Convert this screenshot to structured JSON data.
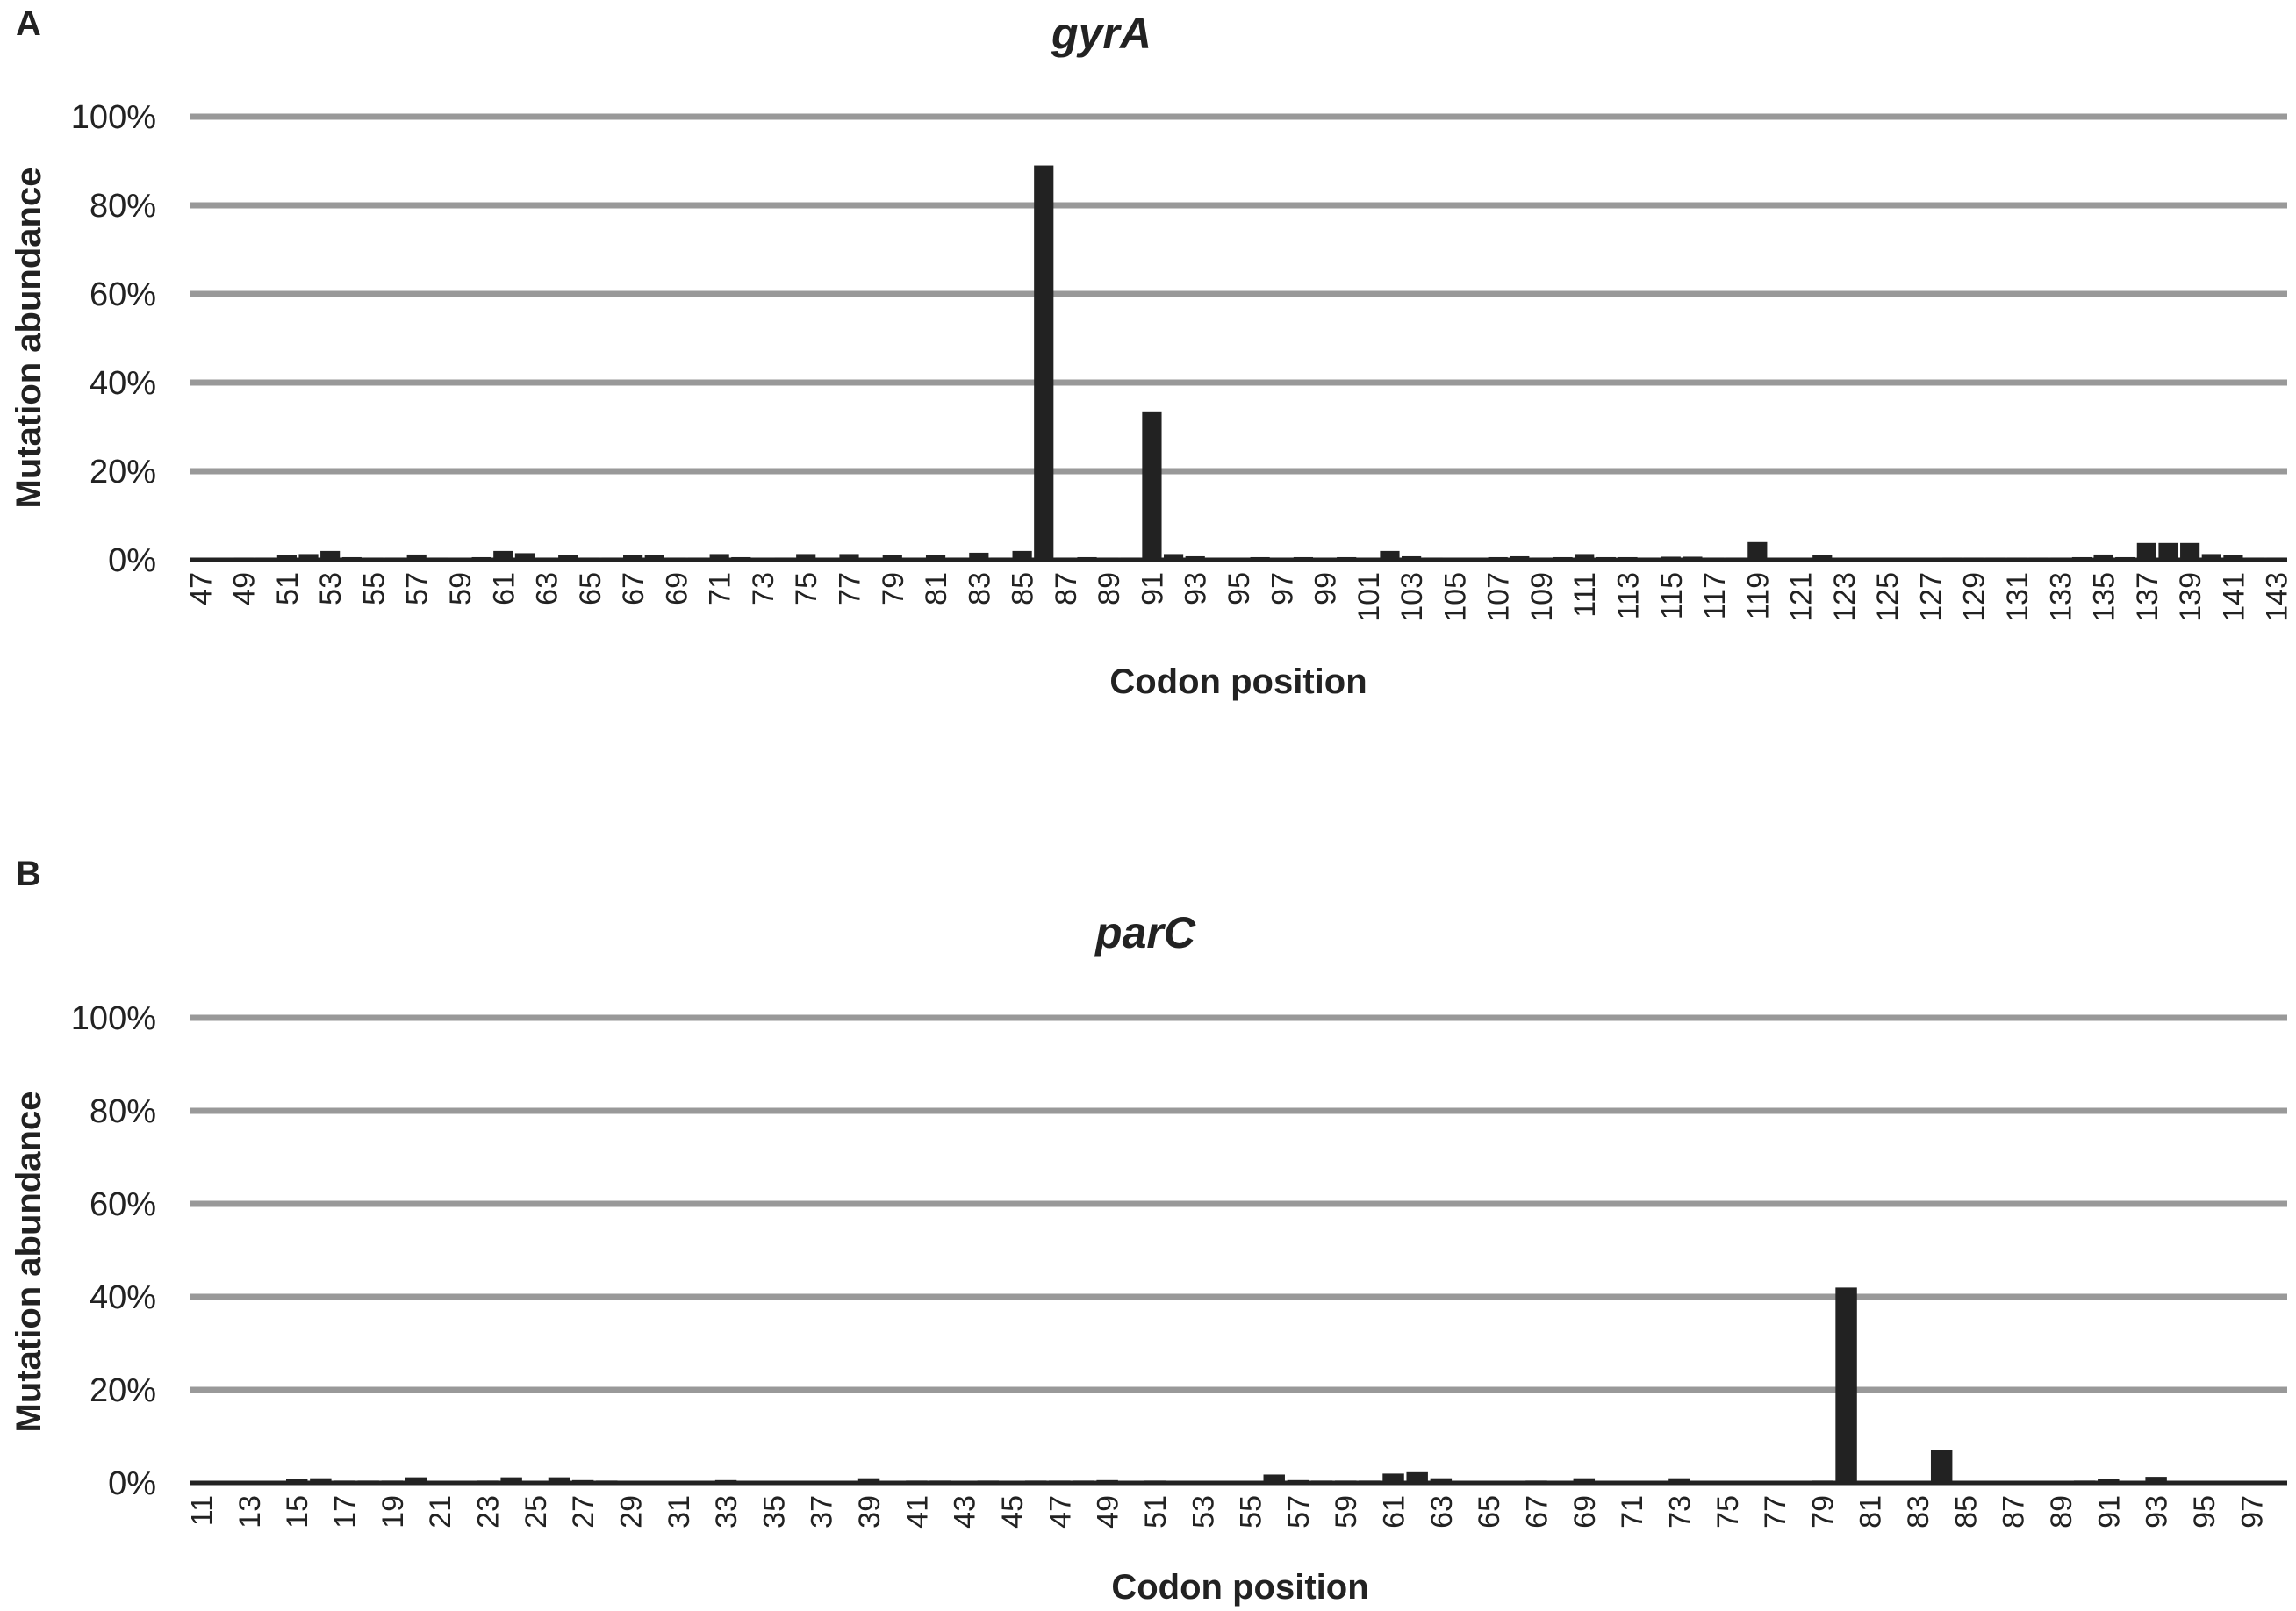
{
  "figure": {
    "colors": {
      "bar": "#222222",
      "grid": "#999999",
      "axis": "#222222",
      "text": "#222222"
    }
  },
  "chart_data": [
    {
      "panel": "A",
      "type": "bar",
      "title": "gyrA",
      "xlabel": "Codon position",
      "ylabel": "Mutation abundance",
      "ylim": [
        0,
        100
      ],
      "y_ticks": [
        "0%",
        "20%",
        "40%",
        "60%",
        "80%",
        "100%"
      ],
      "grid": true,
      "legend": "none",
      "x_start": 47,
      "x_end": 143,
      "tick_labels": [
        "47",
        "49",
        "51",
        "53",
        "55",
        "57",
        "59",
        "61",
        "63",
        "65",
        "67",
        "69",
        "71",
        "73",
        "75",
        "77",
        "79",
        "81",
        "83",
        "85",
        "87",
        "89",
        "91",
        "93",
        "95",
        "97",
        "99",
        "101",
        "103",
        "105",
        "107",
        "109",
        "111",
        "113",
        "115",
        "117",
        "119",
        "121",
        "123",
        "125",
        "127",
        "129",
        "131",
        "133",
        "135",
        "137",
        "139",
        "141",
        "143"
      ],
      "values": [
        0.3,
        0.3,
        0.5,
        0.5,
        1.0,
        1.3,
        2.0,
        0.6,
        0.5,
        0.5,
        1.2,
        0.5,
        0.4,
        0.6,
        2.0,
        1.5,
        0.5,
        1.0,
        0.5,
        0.5,
        1.0,
        1.0,
        0.5,
        0.5,
        1.3,
        0.6,
        0.4,
        0.5,
        1.3,
        0.4,
        1.3,
        0.4,
        1.0,
        0.4,
        1.0,
        0.5,
        1.6,
        0.5,
        2.0,
        89.0,
        0.5,
        0.6,
        0.5,
        0.5,
        33.5,
        1.3,
        0.8,
        0.4,
        0.4,
        0.6,
        0.4,
        0.6,
        0.4,
        0.6,
        0.4,
        2.0,
        0.8,
        0.5,
        0.4,
        0.4,
        0.6,
        0.8,
        0.5,
        0.6,
        1.3,
        0.6,
        0.6,
        0.5,
        0.7,
        0.7,
        0.5,
        0.5,
        4.0,
        0.4,
        0.4,
        1.0,
        0.4,
        0.4,
        0.4,
        0.4,
        0.4,
        0.5,
        0.5,
        0.5,
        0.5,
        0.5,
        0.5,
        0.6,
        1.2,
        0.6,
        3.8,
        3.8,
        3.8,
        1.3,
        1.0,
        0.5,
        0.5
      ]
    },
    {
      "panel": "B",
      "type": "bar",
      "title": "parC",
      "xlabel": "Codon position",
      "ylabel": "Mutation abundance",
      "ylim": [
        0,
        100
      ],
      "y_ticks": [
        "0%",
        "20%",
        "40%",
        "60%",
        "80%",
        "100%"
      ],
      "grid": true,
      "legend": "none",
      "x_start": 11,
      "x_end": 98,
      "tick_labels": [
        "11",
        "13",
        "15",
        "17",
        "19",
        "21",
        "23",
        "25",
        "27",
        "29",
        "31",
        "33",
        "35",
        "37",
        "39",
        "41",
        "43",
        "45",
        "47",
        "49",
        "51",
        "53",
        "55",
        "57",
        "59",
        "61",
        "63",
        "65",
        "67",
        "69",
        "71",
        "73",
        "75",
        "77",
        "79",
        "81",
        "83",
        "85",
        "87",
        "89",
        "91",
        "93",
        "95",
        "97"
      ],
      "values": [
        0.3,
        0.3,
        0.3,
        0.3,
        0.8,
        1.0,
        0.5,
        0.5,
        0.5,
        1.2,
        0.3,
        0.3,
        0.5,
        1.2,
        0.3,
        1.2,
        0.6,
        0.5,
        0.3,
        0.3,
        0.3,
        0.3,
        0.6,
        0.3,
        0.3,
        0.3,
        0.3,
        0.3,
        1.0,
        0.3,
        0.5,
        0.5,
        0.3,
        0.5,
        0.3,
        0.5,
        0.5,
        0.5,
        0.6,
        0.3,
        0.5,
        0.3,
        0.3,
        0.3,
        0.3,
        1.8,
        0.6,
        0.5,
        0.5,
        0.5,
        2.0,
        2.3,
        1.0,
        0.3,
        0.3,
        0.3,
        0.5,
        0.3,
        1.0,
        0.3,
        0.3,
        0.3,
        1.0,
        0.3,
        0.3,
        0.3,
        0.3,
        0.3,
        0.5,
        42.0,
        0.3,
        0.3,
        0.3,
        7.0,
        0.3,
        0.3,
        0.3,
        0.3,
        0.3,
        0.5,
        0.8,
        0.3,
        1.3,
        0.3,
        0.3,
        0.3,
        0.3,
        0.3
      ]
    }
  ]
}
